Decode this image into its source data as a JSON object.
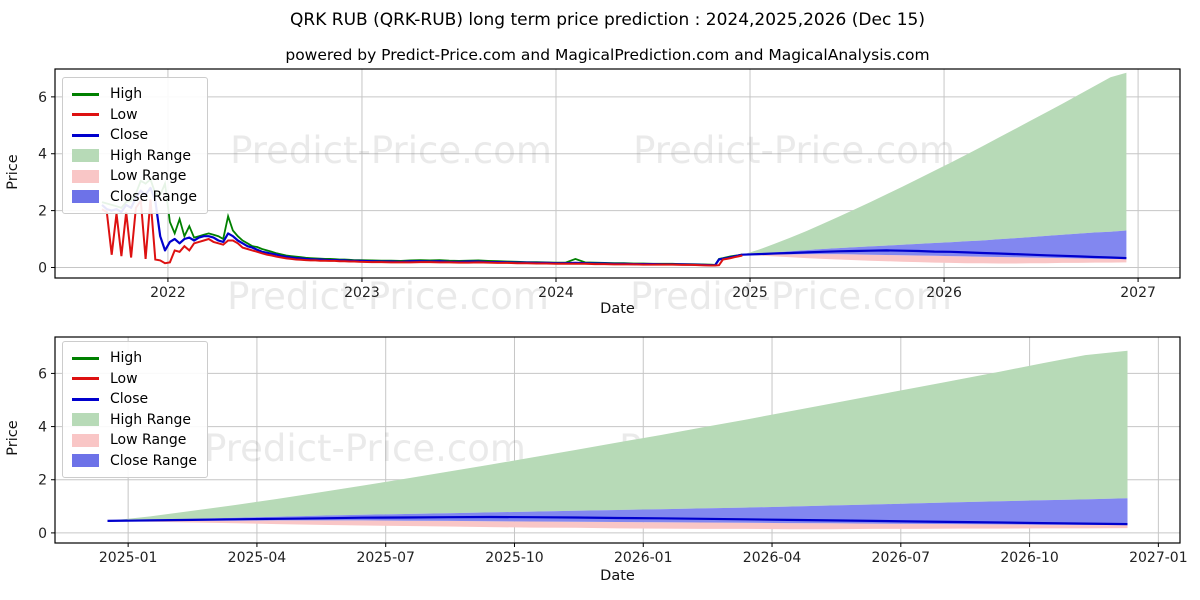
{
  "title": "QRK RUB (QRK-RUB) long term price prediction : 2024,2025,2026 (Dec 15)",
  "subtitle": "powered by Predict-Price.com and MagicalPrediction.com and MagicalAnalysis.com",
  "watermark": {
    "text": "Predict-Price.com",
    "color": "#888888",
    "opacity": 0.18,
    "font_size": 37
  },
  "axes_style": {
    "grid_color": "#c6c6c6",
    "spine_color": "#000000",
    "tick_label_color": "#222222"
  },
  "colors": {
    "high_line": "#008000",
    "low_line": "#dd1111",
    "close_line": "#0000cd",
    "high_range_fill": "#b7dab7",
    "low_range_fill": "#f9c6c6",
    "close_range_fill": "#8287f0",
    "close_range_swatch": "#6d72e8"
  },
  "legend": {
    "items": [
      {
        "label": "High",
        "type": "line",
        "color": "#008000"
      },
      {
        "label": "Low",
        "type": "line",
        "color": "#dd1111"
      },
      {
        "label": "Close",
        "type": "line",
        "color": "#0000cd"
      },
      {
        "label": "High Range",
        "type": "patch",
        "color": "#b7dab7"
      },
      {
        "label": "Low Range",
        "type": "patch",
        "color": "#f9c6c6"
      },
      {
        "label": "Close Range",
        "type": "patch",
        "color": "#6d72e8"
      }
    ]
  },
  "chart_data": {
    "type": "line",
    "top_chart": {
      "title": "",
      "xlabel": "Date",
      "ylabel": "Price",
      "xlim": [
        2021.418,
        2027.216
      ],
      "ylim": [
        -0.37,
        6.98
      ],
      "grid": true,
      "legend_position": "upper left",
      "x_ticks": [
        {
          "v": 2022,
          "label": "2022"
        },
        {
          "v": 2023,
          "label": "2023"
        },
        {
          "v": 2024,
          "label": "2024"
        },
        {
          "v": 2025,
          "label": "2025"
        },
        {
          "v": 2026,
          "label": "2026"
        },
        {
          "v": 2027,
          "label": "2027"
        }
      ],
      "y_ticks": [
        0,
        2,
        4,
        6
      ],
      "history": {
        "x": [
          2021.66,
          2021.685,
          2021.71,
          2021.735,
          2021.76,
          2021.785,
          2021.81,
          2021.835,
          2021.86,
          2021.885,
          2021.91,
          2021.935,
          2021.96,
          2021.985,
          2022.01,
          2022.035,
          2022.06,
          2022.085,
          2022.11,
          2022.135,
          2022.16,
          2022.185,
          2022.21,
          2022.235,
          2022.26,
          2022.285,
          2022.31,
          2022.335,
          2022.36,
          2022.385,
          2022.41,
          2022.435,
          2022.46,
          2022.485,
          2022.51,
          2022.535,
          2022.56,
          2022.585,
          2022.61,
          2022.635,
          2022.66,
          2022.685,
          2022.71,
          2022.735,
          2022.76,
          2022.785,
          2022.81,
          2022.835,
          2022.86,
          2022.885,
          2022.91,
          2022.935,
          2022.96,
          2022.985,
          2023.05,
          2023.1,
          2023.15,
          2023.2,
          2023.25,
          2023.3,
          2023.35,
          2023.4,
          2023.45,
          2023.5,
          2023.55,
          2023.6,
          2023.65,
          2023.7,
          2023.75,
          2023.8,
          2023.85,
          2023.9,
          2023.95,
          2024.0,
          2024.05,
          2024.1,
          2024.15,
          2024.2,
          2024.25,
          2024.3,
          2024.35,
          2024.4,
          2024.45,
          2024.5,
          2024.55,
          2024.6,
          2024.65,
          2024.7,
          2024.75,
          2024.8,
          2024.82,
          2024.84,
          2024.86,
          2024.88,
          2024.9,
          2024.92,
          2024.94,
          2024.96
        ],
        "high": [
          2.3,
          2.25,
          2.2,
          2.15,
          2.1,
          2.3,
          2.35,
          2.6,
          3.05,
          2.95,
          3.1,
          2.6,
          2.55,
          2.95,
          1.6,
          1.2,
          1.7,
          1.1,
          1.45,
          1.05,
          1.1,
          1.15,
          1.2,
          1.15,
          1.1,
          1.0,
          1.8,
          1.3,
          1.1,
          0.95,
          0.85,
          0.75,
          0.72,
          0.65,
          0.6,
          0.55,
          0.5,
          0.46,
          0.42,
          0.4,
          0.38,
          0.36,
          0.34,
          0.33,
          0.32,
          0.31,
          0.3,
          0.3,
          0.29,
          0.28,
          0.28,
          0.27,
          0.26,
          0.26,
          0.25,
          0.24,
          0.24,
          0.23,
          0.25,
          0.26,
          0.25,
          0.26,
          0.24,
          0.23,
          0.24,
          0.25,
          0.23,
          0.22,
          0.21,
          0.2,
          0.19,
          0.19,
          0.18,
          0.17,
          0.17,
          0.3,
          0.18,
          0.17,
          0.16,
          0.15,
          0.15,
          0.14,
          0.14,
          0.13,
          0.13,
          0.13,
          0.12,
          0.12,
          0.11,
          0.1,
          0.09,
          0.3,
          0.33,
          0.36,
          0.39,
          0.41,
          0.43,
          0.46
        ],
        "low": [
          2.05,
          1.95,
          0.45,
          1.9,
          0.4,
          1.95,
          0.35,
          2.1,
          2.35,
          0.3,
          2.4,
          0.28,
          0.25,
          0.15,
          0.18,
          0.6,
          0.55,
          0.75,
          0.6,
          0.85,
          0.9,
          0.95,
          1.0,
          0.9,
          0.85,
          0.8,
          0.95,
          0.95,
          0.85,
          0.7,
          0.65,
          0.6,
          0.55,
          0.5,
          0.45,
          0.42,
          0.38,
          0.35,
          0.32,
          0.3,
          0.28,
          0.27,
          0.26,
          0.25,
          0.25,
          0.24,
          0.24,
          0.23,
          0.23,
          0.22,
          0.22,
          0.21,
          0.21,
          0.2,
          0.19,
          0.19,
          0.18,
          0.18,
          0.18,
          0.19,
          0.19,
          0.18,
          0.18,
          0.17,
          0.17,
          0.18,
          0.17,
          0.16,
          0.16,
          0.15,
          0.15,
          0.14,
          0.14,
          0.13,
          0.13,
          0.13,
          0.13,
          0.12,
          0.12,
          0.11,
          0.11,
          0.11,
          0.1,
          0.1,
          0.1,
          0.1,
          0.09,
          0.09,
          0.08,
          0.07,
          0.07,
          0.08,
          0.28,
          0.3,
          0.33,
          0.36,
          0.39,
          0.42
        ],
        "close": [
          2.2,
          2.05,
          2.0,
          2.05,
          1.95,
          2.2,
          2.1,
          2.45,
          2.7,
          2.55,
          2.8,
          2.35,
          1.1,
          0.6,
          0.9,
          1.0,
          0.85,
          1.0,
          1.05,
          0.95,
          1.05,
          1.1,
          1.1,
          1.05,
          0.95,
          0.9,
          1.2,
          1.1,
          0.95,
          0.85,
          0.75,
          0.7,
          0.62,
          0.55,
          0.52,
          0.48,
          0.45,
          0.4,
          0.38,
          0.35,
          0.33,
          0.32,
          0.3,
          0.29,
          0.28,
          0.28,
          0.27,
          0.26,
          0.26,
          0.25,
          0.25,
          0.24,
          0.23,
          0.23,
          0.22,
          0.21,
          0.21,
          0.2,
          0.22,
          0.22,
          0.21,
          0.22,
          0.2,
          0.2,
          0.21,
          0.21,
          0.19,
          0.19,
          0.18,
          0.17,
          0.17,
          0.16,
          0.16,
          0.15,
          0.15,
          0.16,
          0.15,
          0.14,
          0.14,
          0.13,
          0.13,
          0.12,
          0.12,
          0.12,
          0.11,
          0.11,
          0.11,
          0.1,
          0.09,
          0.08,
          0.08,
          0.28,
          0.31,
          0.33,
          0.36,
          0.39,
          0.42,
          0.45
        ]
      }
    },
    "bottom_chart": {
      "title": "",
      "xlabel": "Date",
      "ylabel": "Price",
      "xlim": [
        2024.858,
        2027.042
      ],
      "ylim": [
        -0.38,
        7.37
      ],
      "grid": true,
      "legend_position": "upper left",
      "x_ticks": [
        {
          "v": 2025.0,
          "label": "2025-01"
        },
        {
          "v": 2025.25,
          "label": "2025-04"
        },
        {
          "v": 2025.5,
          "label": "2025-07"
        },
        {
          "v": 2025.75,
          "label": "2025-10"
        },
        {
          "v": 2026.0,
          "label": "2026-01"
        },
        {
          "v": 2026.25,
          "label": "2026-04"
        },
        {
          "v": 2026.5,
          "label": "2026-07"
        },
        {
          "v": 2026.75,
          "label": "2026-10"
        },
        {
          "v": 2027.0,
          "label": "2027-01"
        }
      ],
      "y_ticks": [
        0,
        2,
        4,
        6
      ]
    },
    "prediction_series": {
      "x": [
        2024.96,
        2025.043,
        2025.125,
        2025.208,
        2025.29,
        2025.373,
        2025.455,
        2025.538,
        2025.62,
        2025.703,
        2025.785,
        2025.868,
        2025.95,
        2026.033,
        2026.115,
        2026.198,
        2026.28,
        2026.363,
        2026.445,
        2026.528,
        2026.61,
        2026.693,
        2026.775,
        2026.858,
        2026.94
      ],
      "close": [
        0.45,
        0.47,
        0.49,
        0.51,
        0.53,
        0.55,
        0.57,
        0.58,
        0.59,
        0.6,
        0.59,
        0.58,
        0.56,
        0.55,
        0.53,
        0.51,
        0.49,
        0.47,
        0.45,
        0.43,
        0.41,
        0.39,
        0.37,
        0.35,
        0.33
      ],
      "close_range_upper": [
        0.45,
        0.49,
        0.53,
        0.57,
        0.61,
        0.65,
        0.68,
        0.71,
        0.74,
        0.77,
        0.8,
        0.83,
        0.86,
        0.89,
        0.92,
        0.95,
        0.99,
        1.03,
        1.07,
        1.11,
        1.15,
        1.19,
        1.23,
        1.26,
        1.3
      ],
      "close_range_lower": [
        0.45,
        0.45,
        0.46,
        0.46,
        0.47,
        0.47,
        0.47,
        0.46,
        0.45,
        0.44,
        0.43,
        0.42,
        0.41,
        0.4,
        0.39,
        0.38,
        0.37,
        0.36,
        0.35,
        0.34,
        0.33,
        0.32,
        0.31,
        0.3,
        0.3
      ],
      "high_range_upper": [
        0.45,
        0.62,
        0.83,
        1.05,
        1.28,
        1.53,
        1.78,
        2.04,
        2.3,
        2.57,
        2.84,
        3.12,
        3.4,
        3.68,
        3.97,
        4.26,
        4.56,
        4.86,
        5.16,
        5.46,
        5.76,
        6.07,
        6.38,
        6.69,
        6.85
      ],
      "low_range_lower": [
        0.45,
        0.42,
        0.39,
        0.36,
        0.33,
        0.3,
        0.28,
        0.26,
        0.24,
        0.22,
        0.2,
        0.19,
        0.17,
        0.16,
        0.15,
        0.15,
        0.14,
        0.14,
        0.15,
        0.15,
        0.16,
        0.16,
        0.17,
        0.17,
        0.18
      ]
    }
  }
}
